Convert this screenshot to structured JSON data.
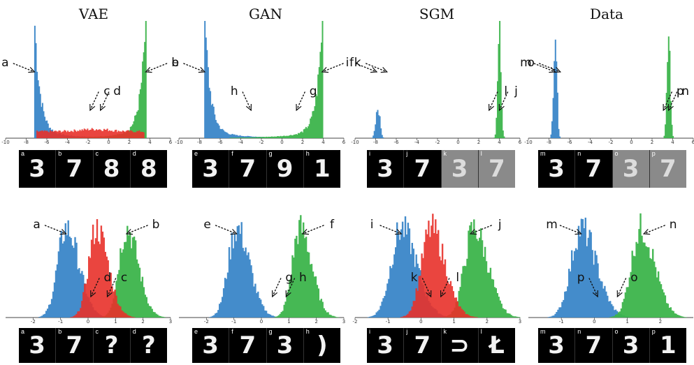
{
  "columns": [
    {
      "title": "VAE"
    },
    {
      "title": "GAN"
    },
    {
      "title": "SGM"
    },
    {
      "title": "Data"
    }
  ],
  "colors": {
    "blue": "#3a86c8",
    "green": "#3cb44b",
    "red": "#e8312a"
  },
  "chart_data": [
    {
      "type": "area",
      "panel": "top",
      "column": "VAE",
      "xlim": [
        -10,
        6
      ],
      "x_ticks": [
        "-10",
        "-8",
        "-6",
        "-4",
        "-2",
        "0",
        "2",
        "4",
        "6"
      ],
      "series": [
        {
          "color": "blue",
          "peak_x": -7.2,
          "shape": "spike-left"
        },
        {
          "color": "green",
          "peak_x": 3.6,
          "shape": "spike-right"
        },
        {
          "color": "red",
          "peak_x": -1.3,
          "shape": "flat-middle"
        }
      ],
      "annotations": [
        {
          "label": "a",
          "x": -7.2
        },
        {
          "label": "b",
          "x": 3.6
        },
        {
          "label": "c",
          "x": -1.8
        },
        {
          "label": "d",
          "x": -0.8
        }
      ]
    },
    {
      "type": "area",
      "panel": "top",
      "column": "GAN",
      "xlim": [
        -10,
        6
      ],
      "x_ticks": [
        "-10",
        "-8",
        "-6",
        "-4",
        "-2",
        "0",
        "2",
        "4",
        "6"
      ],
      "series": [
        {
          "color": "blue",
          "peak_x": -7.5,
          "shape": "spike-left"
        },
        {
          "color": "green",
          "peak_x": 3.9,
          "shape": "spike-right"
        }
      ],
      "annotations": [
        {
          "label": "e",
          "x": -7.5
        },
        {
          "label": "f",
          "x": 3.9
        },
        {
          "label": "h",
          "x": -3.0
        },
        {
          "label": "g",
          "x": 1.4
        }
      ]
    },
    {
      "type": "area",
      "panel": "top",
      "column": "SGM",
      "xlim": [
        -10,
        6
      ],
      "x_ticks": [
        "-10",
        "-8",
        "-6",
        "-4",
        "-2",
        "0",
        "2",
        "4",
        "6"
      ],
      "series": [
        {
          "color": "blue",
          "peak_x": -7.8,
          "shape": "narrow-gauss"
        },
        {
          "color": "green",
          "peak_x": 4.0,
          "shape": "narrow-gauss-tall"
        }
      ],
      "annotations": [
        {
          "label": "i",
          "x": -7.9
        },
        {
          "label": "k",
          "x": -6.9
        },
        {
          "label": "j",
          "x": 4.0
        },
        {
          "label": "l",
          "x": 3.0
        }
      ]
    },
    {
      "type": "area",
      "panel": "top",
      "column": "Data",
      "xlim": [
        -10,
        6
      ],
      "x_ticks": [
        "-10",
        "-8",
        "-6",
        "-4",
        "-2",
        "0",
        "2",
        "4",
        "6"
      ],
      "series": [
        {
          "color": "blue",
          "peak_x": -7.4,
          "shape": "narrow-gauss-tall"
        },
        {
          "color": "green",
          "peak_x": 3.6,
          "shape": "narrow-gauss-tall"
        }
      ],
      "annotations": [
        {
          "label": "m",
          "x": -7.4
        },
        {
          "label": "o",
          "x": -6.9
        },
        {
          "label": "n",
          "x": 3.6
        },
        {
          "label": "p",
          "x": 3.1
        }
      ]
    },
    {
      "type": "area",
      "panel": "bottom",
      "column": "VAE",
      "xlim": [
        -3,
        3
      ],
      "x_ticks": [
        "-2",
        "-1",
        "0",
        "1",
        "2",
        "3"
      ],
      "series": [
        {
          "color": "blue",
          "peak_x": -0.8
        },
        {
          "color": "green",
          "peak_x": 1.4
        },
        {
          "color": "red",
          "peak_x": 0.3
        }
      ],
      "annotations": [
        {
          "label": "a",
          "x": -0.8
        },
        {
          "label": "b",
          "x": 1.4
        },
        {
          "label": "c",
          "x": 0.7
        },
        {
          "label": "d",
          "x": 0.1
        }
      ]
    },
    {
      "type": "area",
      "panel": "bottom",
      "column": "GAN",
      "xlim": [
        -3,
        3
      ],
      "x_ticks": [
        "-2",
        "-1",
        "0",
        "1",
        "2",
        "3"
      ],
      "series": [
        {
          "color": "blue",
          "peak_x": -0.9
        },
        {
          "color": "green",
          "peak_x": 1.4
        }
      ],
      "annotations": [
        {
          "label": "e",
          "x": -0.9
        },
        {
          "label": "f",
          "x": 1.5
        },
        {
          "label": "h",
          "x": 0.9
        },
        {
          "label": "g",
          "x": 0.4
        }
      ]
    },
    {
      "type": "area",
      "panel": "bottom",
      "column": "SGM",
      "xlim": [
        -2,
        3
      ],
      "x_ticks": [
        "-2",
        "-1",
        "0",
        "1",
        "2",
        "3"
      ],
      "series": [
        {
          "color": "blue",
          "peak_x": -0.6
        },
        {
          "color": "green",
          "peak_x": 1.6
        },
        {
          "color": "red",
          "peak_x": 0.3
        }
      ],
      "annotations": [
        {
          "label": "i",
          "x": -0.6
        },
        {
          "label": "j",
          "x": 1.5
        },
        {
          "label": "k",
          "x": 0.3
        },
        {
          "label": "l",
          "x": 0.6
        }
      ]
    },
    {
      "type": "area",
      "panel": "bottom",
      "column": "Data",
      "xlim": [
        -2,
        3
      ],
      "x_ticks": [
        "-1",
        "0",
        "1",
        "2"
      ],
      "series": [
        {
          "color": "blue",
          "peak_x": -0.4
        },
        {
          "color": "green",
          "peak_x": 1.4
        }
      ],
      "annotations": [
        {
          "label": "m",
          "x": -0.4
        },
        {
          "label": "n",
          "x": 1.5
        },
        {
          "label": "o",
          "x": 0.7
        },
        {
          "label": "p",
          "x": 0.1
        }
      ]
    }
  ],
  "strips": [
    {
      "column": "VAE",
      "panel": "top",
      "cells": [
        {
          "tag": "a",
          "glyph": "3"
        },
        {
          "tag": "b",
          "glyph": "7"
        },
        {
          "tag": "c",
          "glyph": "8"
        },
        {
          "tag": "d",
          "glyph": "8"
        }
      ]
    },
    {
      "column": "GAN",
      "panel": "top",
      "cells": [
        {
          "tag": "e",
          "glyph": "3"
        },
        {
          "tag": "f",
          "glyph": "7"
        },
        {
          "tag": "g",
          "glyph": "9"
        },
        {
          "tag": "h",
          "glyph": "1"
        }
      ]
    },
    {
      "column": "SGM",
      "panel": "top",
      "cells": [
        {
          "tag": "i",
          "glyph": "3"
        },
        {
          "tag": "j",
          "glyph": "7"
        },
        {
          "tag": "k",
          "glyph": "3",
          "noisy": true
        },
        {
          "tag": "l",
          "glyph": "7",
          "noisy": true
        }
      ]
    },
    {
      "column": "Data",
      "panel": "top",
      "cells": [
        {
          "tag": "m",
          "glyph": "3"
        },
        {
          "tag": "n",
          "glyph": "7"
        },
        {
          "tag": "o",
          "glyph": "3",
          "noisy": true
        },
        {
          "tag": "p",
          "glyph": "7",
          "noisy": true
        }
      ]
    },
    {
      "column": "VAE",
      "panel": "bottom",
      "cells": [
        {
          "tag": "a",
          "glyph": "3"
        },
        {
          "tag": "b",
          "glyph": "7"
        },
        {
          "tag": "c",
          "glyph": "?"
        },
        {
          "tag": "d",
          "glyph": "?"
        }
      ]
    },
    {
      "column": "GAN",
      "panel": "bottom",
      "cells": [
        {
          "tag": "e",
          "glyph": "3"
        },
        {
          "tag": "f",
          "glyph": "7"
        },
        {
          "tag": "g",
          "glyph": "3"
        },
        {
          "tag": "h",
          "glyph": ")"
        }
      ]
    },
    {
      "column": "SGM",
      "panel": "bottom",
      "cells": [
        {
          "tag": "i",
          "glyph": "3"
        },
        {
          "tag": "j",
          "glyph": "7"
        },
        {
          "tag": "k",
          "glyph": "⊃"
        },
        {
          "tag": "l",
          "glyph": "Ł"
        }
      ]
    },
    {
      "column": "Data",
      "panel": "bottom",
      "cells": [
        {
          "tag": "m",
          "glyph": "3"
        },
        {
          "tag": "n",
          "glyph": "7"
        },
        {
          "tag": "o",
          "glyph": "3"
        },
        {
          "tag": "p",
          "glyph": "1"
        }
      ]
    }
  ]
}
